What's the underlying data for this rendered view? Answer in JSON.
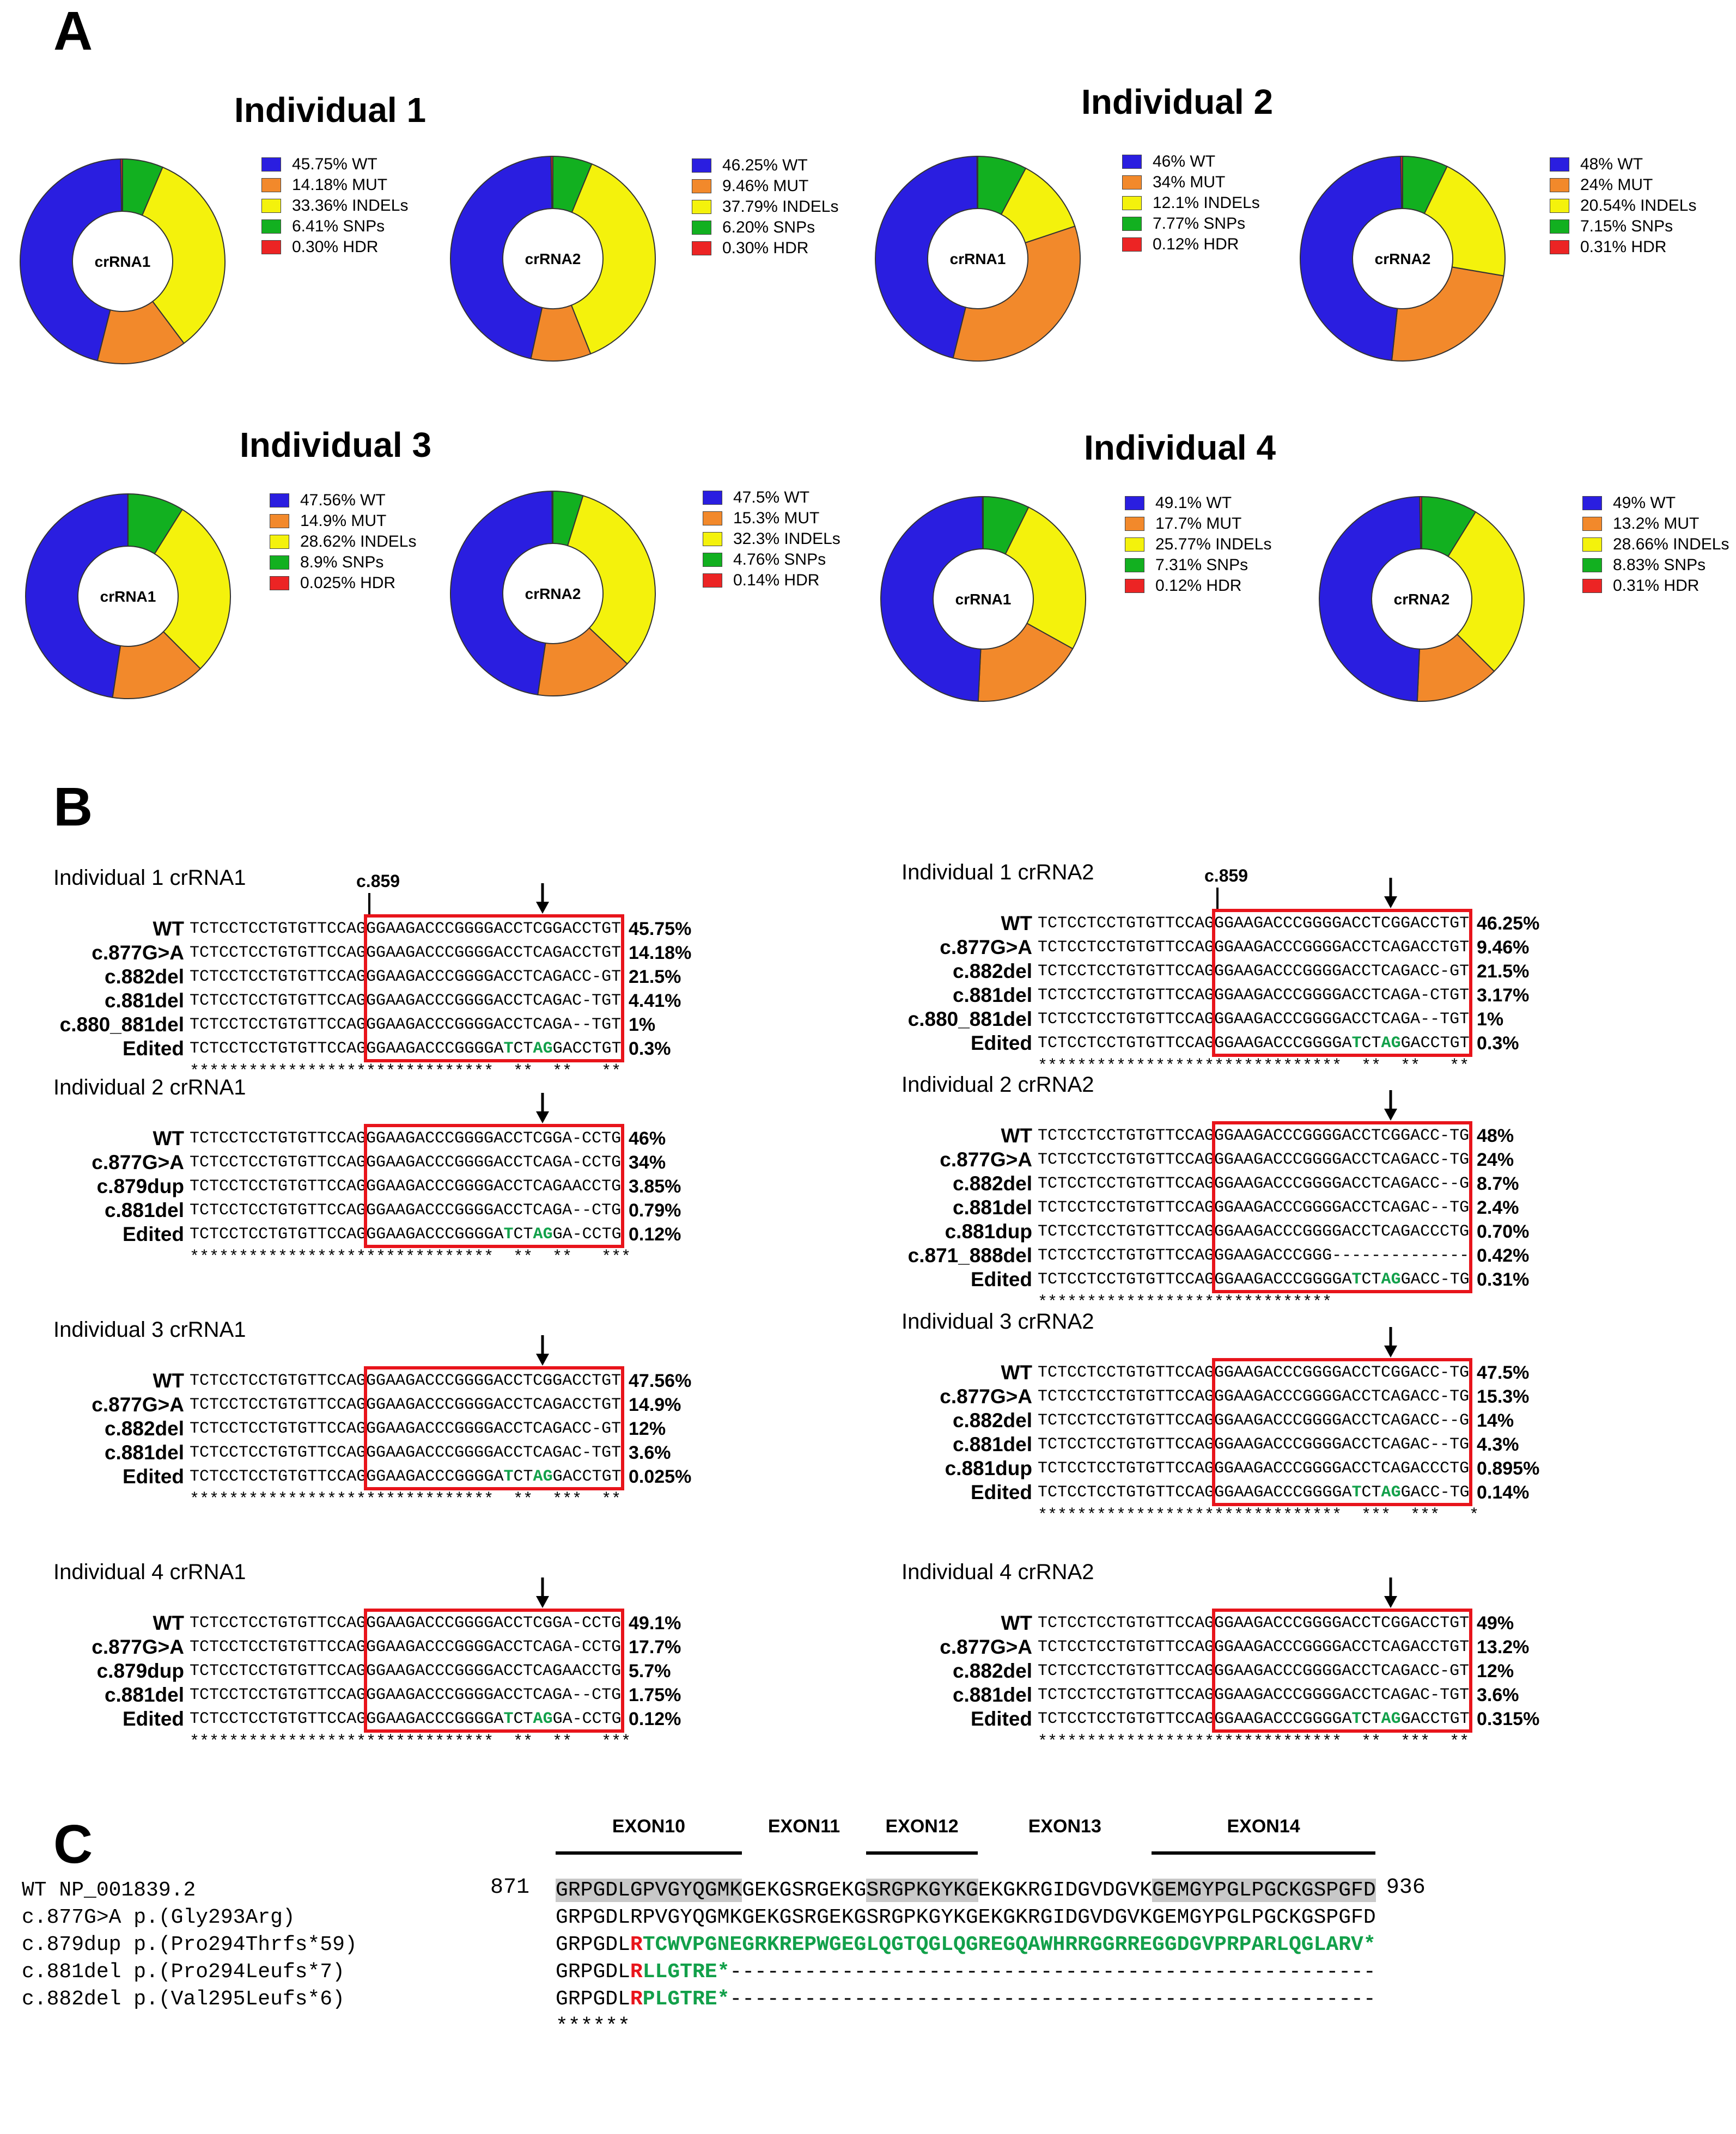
{
  "panels": {
    "a": "A",
    "b": "B",
    "c": "C"
  },
  "colors": {
    "WT": "#2a1ee0",
    "MUT": "#f2892b",
    "INDELs": "#f4f20c",
    "SNPs": "#12b020",
    "HDR": "#ec2424",
    "box": "#e8141b",
    "green_text": "#12a04a"
  },
  "chart_data": [
    {
      "type": "pie",
      "individual": "Individual 1",
      "title": "crRNA1",
      "categories": [
        "WT",
        "MUT",
        "INDELs",
        "SNPs",
        "HDR"
      ],
      "values": [
        45.75,
        14.18,
        33.36,
        6.41,
        0.3
      ],
      "legend": [
        "45.75%  WT",
        "14.18%  MUT",
        "33.36%  INDELs",
        "6.41%  SNPs",
        "0.30%  HDR"
      ]
    },
    {
      "type": "pie",
      "individual": "Individual 1",
      "title": "crRNA2",
      "categories": [
        "WT",
        "MUT",
        "INDELs",
        "SNPs",
        "HDR"
      ],
      "values": [
        46.25,
        9.46,
        37.79,
        6.2,
        0.3
      ],
      "legend": [
        "46.25%  WT",
        "9.46%  MUT",
        "37.79%  INDELs",
        "6.20%  SNPs",
        "0.30%  HDR"
      ]
    },
    {
      "type": "pie",
      "individual": "Individual 2",
      "title": "crRNA1",
      "categories": [
        "WT",
        "MUT",
        "INDELs",
        "SNPs",
        "HDR"
      ],
      "values": [
        46,
        34,
        12.1,
        7.77,
        0.12
      ],
      "legend": [
        "46%  WT",
        "34%  MUT",
        "12.1%  INDELs",
        "7.77%  SNPs",
        "0.12%  HDR"
      ]
    },
    {
      "type": "pie",
      "individual": "Individual 2",
      "title": "crRNA2",
      "categories": [
        "WT",
        "MUT",
        "INDELs",
        "SNPs",
        "HDR"
      ],
      "values": [
        48,
        24,
        20.54,
        7.15,
        0.31
      ],
      "legend": [
        "48%  WT",
        "24%  MUT",
        "20.54%  INDELs",
        "7.15%  SNPs",
        "0.31%  HDR"
      ]
    },
    {
      "type": "pie",
      "individual": "Individual 3",
      "title": "crRNA1",
      "categories": [
        "WT",
        "MUT",
        "INDELs",
        "SNPs",
        "HDR"
      ],
      "values": [
        47.56,
        14.9,
        28.62,
        8.9,
        0.025
      ],
      "legend": [
        "47.56%  WT",
        "14.9%  MUT",
        "28.62%  INDELs",
        "8.9%  SNPs",
        "0.025%  HDR"
      ]
    },
    {
      "type": "pie",
      "individual": "Individual 3",
      "title": "crRNA2",
      "categories": [
        "WT",
        "MUT",
        "INDELs",
        "SNPs",
        "HDR"
      ],
      "values": [
        47.5,
        15.3,
        32.3,
        4.76,
        0.14
      ],
      "legend": [
        "47.5%  WT",
        "15.3%  MUT",
        "32.3%  INDELs",
        "4.76%  SNPs",
        "0.14%  HDR"
      ]
    },
    {
      "type": "pie",
      "individual": "Individual 4",
      "title": "crRNA1",
      "categories": [
        "WT",
        "MUT",
        "INDELs",
        "SNPs",
        "HDR"
      ],
      "values": [
        49.1,
        17.7,
        25.77,
        7.31,
        0.12
      ],
      "legend": [
        "49.1%  WT",
        "17.7%  MUT",
        "25.77%  INDELs",
        "7.31%  SNPs",
        "0.12%  HDR"
      ]
    },
    {
      "type": "pie",
      "individual": "Individual 4",
      "title": "crRNA2",
      "categories": [
        "WT",
        "MUT",
        "INDELs",
        "SNPs",
        "HDR"
      ],
      "values": [
        49,
        13.2,
        28.66,
        8.83,
        0.31
      ],
      "legend": [
        "49%  WT",
        "13.2%  MUT",
        "28.66%  INDELs",
        "8.83%  SNPs",
        "0.31%  HDR"
      ]
    }
  ],
  "individual_titles": [
    "Individual 1",
    "Individual 2",
    "Individual 3",
    "Individual 4"
  ],
  "alignments": [
    {
      "title": "Individual 1 crRNA1",
      "c859": "c.859",
      "rows": [
        {
          "label": "WT",
          "seq": "TCTCCTCCTGTGTTCCAGGGAAGACCCGGGGACCTCGGACCTGT",
          "pct": "45.75%"
        },
        {
          "label": "c.877G>A",
          "seq": "TCTCCTCCTGTGTTCCAGGGAAGACCCGGGGACCTCAGACCTGT",
          "pct": "14.18%"
        },
        {
          "label": "c.882del",
          "seq": "TCTCCTCCTGTGTTCCAGGGAAGACCCGGGGACCTCAGACC-GT",
          "pct": "21.5%"
        },
        {
          "label": "c.881del",
          "seq": "TCTCCTCCTGTGTTCCAGGGAAGACCCGGGGACCTCAGAC-TGT",
          "pct": "4.41%"
        },
        {
          "label": "c.880_881del",
          "seq": "TCTCCTCCTGTGTTCCAGGGAAGACCCGGGGACCTCAGA--TGT",
          "pct": "1%"
        },
        {
          "label": "Edited",
          "seq": "TCTCCTCCTGTGTTCCAGGGAAGACCCGGGGATCTAGGACCTGT",
          "pct": "0.3%"
        }
      ],
      "consensus": "*******************************  **  **   **"
    },
    {
      "title": "Individual 1 crRNA2",
      "c859": "c.859",
      "rows": [
        {
          "label": "WT",
          "seq": "TCTCCTCCTGTGTTCCAGGGAAGACCCGGGGACCTCGGACCTGT",
          "pct": "46.25%"
        },
        {
          "label": "c.877G>A",
          "seq": "TCTCCTCCTGTGTTCCAGGGAAGACCCGGGGACCTCAGACCTGT",
          "pct": "9.46%"
        },
        {
          "label": "c.882del",
          "seq": "TCTCCTCCTGTGTTCCAGGGAAGACCCGGGGACCTCAGACC-GT",
          "pct": "21.5%"
        },
        {
          "label": "c.881del",
          "seq": "TCTCCTCCTGTGTTCCAGGGAAGACCCGGGGACCTCAGA-CTGT",
          "pct": "3.17%"
        },
        {
          "label": "c.880_881del",
          "seq": "TCTCCTCCTGTGTTCCAGGGAAGACCCGGGGACCTCAGA--TGT",
          "pct": "1%"
        },
        {
          "label": "Edited",
          "seq": "TCTCCTCCTGTGTTCCAGGGAAGACCCGGGGATCTAGGACCTGT",
          "pct": "0.3%"
        }
      ],
      "consensus": "*******************************  **  **   **"
    },
    {
      "title": "Individual 2 crRNA1",
      "rows": [
        {
          "label": "WT",
          "seq": "TCTCCTCCTGTGTTCCAGGGAAGACCCGGGGACCTCGGA-CCTG",
          "pct": "46%"
        },
        {
          "label": "c.877G>A",
          "seq": "TCTCCTCCTGTGTTCCAGGGAAGACCCGGGGACCTCAGA-CCTG",
          "pct": "34%"
        },
        {
          "label": "c.879dup",
          "seq": "TCTCCTCCTGTGTTCCAGGGAAGACCCGGGGACCTCAGAACCTG",
          "pct": "3.85%"
        },
        {
          "label": "c.881del",
          "seq": "TCTCCTCCTGTGTTCCAGGGAAGACCCGGGGACCTCAGA--CTG",
          "pct": "0.79%"
        },
        {
          "label": "Edited",
          "seq": "TCTCCTCCTGTGTTCCAGGGAAGACCCGGGGATCTAGGA-CCTG",
          "pct": "0.12%"
        }
      ],
      "consensus": "*******************************  **  **   ***"
    },
    {
      "title": "Individual 2 crRNA2",
      "rows": [
        {
          "label": "WT",
          "seq": "TCTCCTCCTGTGTTCCAGGGAAGACCCGGGGACCTCGGACC-TG",
          "pct": "48%"
        },
        {
          "label": "c.877G>A",
          "seq": "TCTCCTCCTGTGTTCCAGGGAAGACCCGGGGACCTCAGACC-TG",
          "pct": "24%"
        },
        {
          "label": "c.882del",
          "seq": "TCTCCTCCTGTGTTCCAGGGAAGACCCGGGGACCTCAGACC--G",
          "pct": "8.7%"
        },
        {
          "label": "c.881del",
          "seq": "TCTCCTCCTGTGTTCCAGGGAAGACCCGGGGACCTCAGAC--TG",
          "pct": "2.4%"
        },
        {
          "label": "c.881dup",
          "seq": "TCTCCTCCTGTGTTCCAGGGAAGACCCGGGGACCTCAGACCCTG",
          "pct": "0.70%"
        },
        {
          "label": "c.871_888del",
          "seq": "TCTCCTCCTGTGTTCCAGGGAAGACCCGGG--------------",
          "pct": "0.42%"
        },
        {
          "label": "Edited",
          "seq": "TCTCCTCCTGTGTTCCAGGGAAGACCCGGGGATCTAGGACC-TG",
          "pct": "0.31%"
        }
      ],
      "consensus": "******************************"
    },
    {
      "title": "Individual 3 crRNA1",
      "rows": [
        {
          "label": "WT",
          "seq": "TCTCCTCCTGTGTTCCAGGGAAGACCCGGGGACCTCGGACCTGT",
          "pct": "47.56%"
        },
        {
          "label": "c.877G>A",
          "seq": "TCTCCTCCTGTGTTCCAGGGAAGACCCGGGGACCTCAGACCTGT",
          "pct": "14.9%"
        },
        {
          "label": "c.882del",
          "seq": "TCTCCTCCTGTGTTCCAGGGAAGACCCGGGGACCTCAGACC-GT",
          "pct": "12%"
        },
        {
          "label": "c.881del",
          "seq": "TCTCCTCCTGTGTTCCAGGGAAGACCCGGGGACCTCAGAC-TGT",
          "pct": "3.6%"
        },
        {
          "label": "Edited",
          "seq": "TCTCCTCCTGTGTTCCAGGGAAGACCCGGGGATCTAGGACCTGT",
          "pct": "0.025%"
        }
      ],
      "consensus": "*******************************  **  ***  **"
    },
    {
      "title": "Individual 3 crRNA2",
      "rows": [
        {
          "label": "WT",
          "seq": "TCTCCTCCTGTGTTCCAGGGAAGACCCGGGGACCTCGGACC-TG",
          "pct": "47.5%"
        },
        {
          "label": "c.877G>A",
          "seq": "TCTCCTCCTGTGTTCCAGGGAAGACCCGGGGACCTCAGACC-TG",
          "pct": "15.3%"
        },
        {
          "label": "c.882del",
          "seq": "TCTCCTCCTGTGTTCCAGGGAAGACCCGGGGACCTCAGACC--G",
          "pct": "14%"
        },
        {
          "label": "c.881del",
          "seq": "TCTCCTCCTGTGTTCCAGGGAAGACCCGGGGACCTCAGAC--TG",
          "pct": "4.3%"
        },
        {
          "label": "c.881dup",
          "seq": "TCTCCTCCTGTGTTCCAGGGAAGACCCGGGGACCTCAGACCCTG",
          "pct": "0.895%"
        },
        {
          "label": "Edited",
          "seq": "TCTCCTCCTGTGTTCCAGGGAAGACCCGGGGATCTAGGACC-TG",
          "pct": "0.14%"
        }
      ],
      "consensus": "*******************************  ***  ***   *"
    },
    {
      "title": "Individual 4 crRNA1",
      "rows": [
        {
          "label": "WT",
          "seq": "TCTCCTCCTGTGTTCCAGGGAAGACCCGGGGACCTCGGA-CCTG",
          "pct": "49.1%"
        },
        {
          "label": "c.877G>A",
          "seq": "TCTCCTCCTGTGTTCCAGGGAAGACCCGGGGACCTCAGA-CCTG",
          "pct": "17.7%"
        },
        {
          "label": "c.879dup",
          "seq": "TCTCCTCCTGTGTTCCAGGGAAGACCCGGGGACCTCAGAACCTG",
          "pct": "5.7%"
        },
        {
          "label": "c.881del",
          "seq": "TCTCCTCCTGTGTTCCAGGGAAGACCCGGGGACCTCAGA--CTG",
          "pct": "1.75%"
        },
        {
          "label": "Edited",
          "seq": "TCTCCTCCTGTGTTCCAGGGAAGACCCGGGGATCTAGGA-CCTG",
          "pct": "0.12%"
        }
      ],
      "consensus": "*******************************  **  **   ***"
    },
    {
      "title": "Individual 4 crRNA2",
      "rows": [
        {
          "label": "WT",
          "seq": "TCTCCTCCTGTGTTCCAGGGAAGACCCGGGGACCTCGGACCTGT",
          "pct": "49%"
        },
        {
          "label": "c.877G>A",
          "seq": "TCTCCTCCTGTGTTCCAGGGAAGACCCGGGGACCTCAGACCTGT",
          "pct": "13.2%"
        },
        {
          "label": "c.882del",
          "seq": "TCTCCTCCTGTGTTCCAGGGAAGACCCGGGGACCTCAGACC-GT",
          "pct": "12%"
        },
        {
          "label": "c.881del",
          "seq": "TCTCCTCCTGTGTTCCAGGGAAGACCCGGGGACCTCAGAC-TGT",
          "pct": "3.6%"
        },
        {
          "label": "Edited",
          "seq": "TCTCCTCCTGTGTTCCAGGGAAGACCCGGGGATCTAGGACCTGT",
          "pct": "0.315%"
        }
      ],
      "consensus": "*******************************  **  ***  **"
    }
  ],
  "protein": {
    "start": "871",
    "end": "936",
    "exons": [
      "EXON10",
      "EXON11",
      "EXON12",
      "EXON13",
      "EXON14"
    ],
    "wt_label": "WT NP_001839.2",
    "wt_seq": "GRPGDLGPVGYQGMKGEKGSRGEKGSRGPKGYKGEKGKRGIDGVDGVKGEMGYPGLPGCKGSPGFD",
    "variants": [
      {
        "label": "c.877G>A p.(Gly293Arg)",
        "seq": "GRPGDLRPVGYQGMKGEKGSRGEKGSRGPKGYKGEKGKRGIDGVDGVKGEMGYPGLPGCKGSPGFD"
      },
      {
        "label": "c.879dup p.(Pro294Thrfs*59)",
        "seq": "GRPGDLRTCWVPGNEGRKREPWGEGLQGTQGLQGREGQAWHRRGGRREGGDGVPRPARLQGLARV*"
      },
      {
        "label": "c.881del p.(Pro294Leufs*7)",
        "seq": "GRPGDLRLLGTRE*----------------------------------------------------"
      },
      {
        "label": "c.882del p.(Val295Leufs*6)",
        "seq": "GRPGDLRPLGTRE*----------------------------------------------------"
      }
    ],
    "consensus": "******"
  }
}
